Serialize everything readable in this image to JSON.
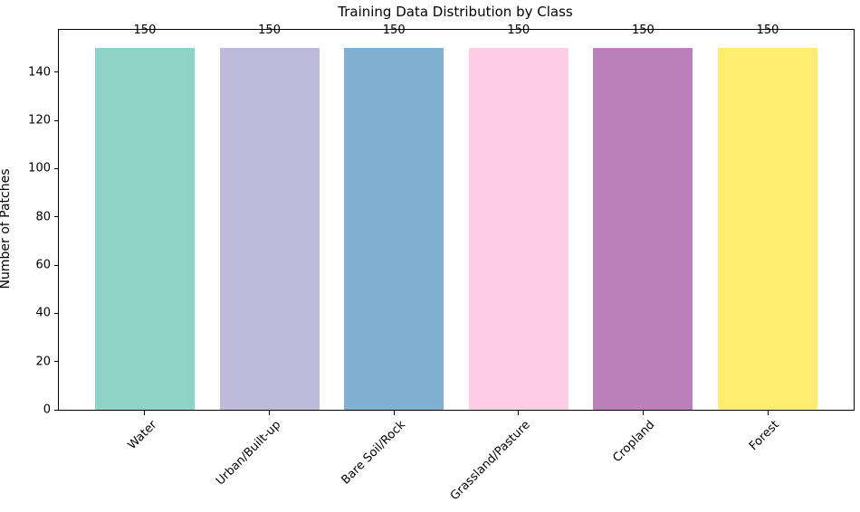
{
  "chart_data": {
    "type": "bar",
    "title": "Training Data Distribution by Class",
    "xlabel": "",
    "ylabel": "Number of Patches",
    "categories": [
      "Water",
      "Urban/Built-up",
      "Bare Soil/Rock",
      "Grassland/Pasture",
      "Cropland",
      "Forest"
    ],
    "values": [
      150,
      150,
      150,
      150,
      150,
      150
    ],
    "bar_value_labels": [
      "150",
      "150",
      "150",
      "150",
      "150",
      "150"
    ],
    "bar_colors": [
      "#8dd3c7",
      "#bebada",
      "#80b1d3",
      "#fccde5",
      "#bc80bd",
      "#ffed6f"
    ],
    "yticks": [
      0,
      20,
      40,
      60,
      80,
      100,
      120,
      140
    ],
    "ylim": [
      0,
      157.5
    ],
    "xtick_rotation_deg": 45,
    "grid": false,
    "legend": "none",
    "axis_color": "#000000",
    "background_color": "#ffffff"
  }
}
